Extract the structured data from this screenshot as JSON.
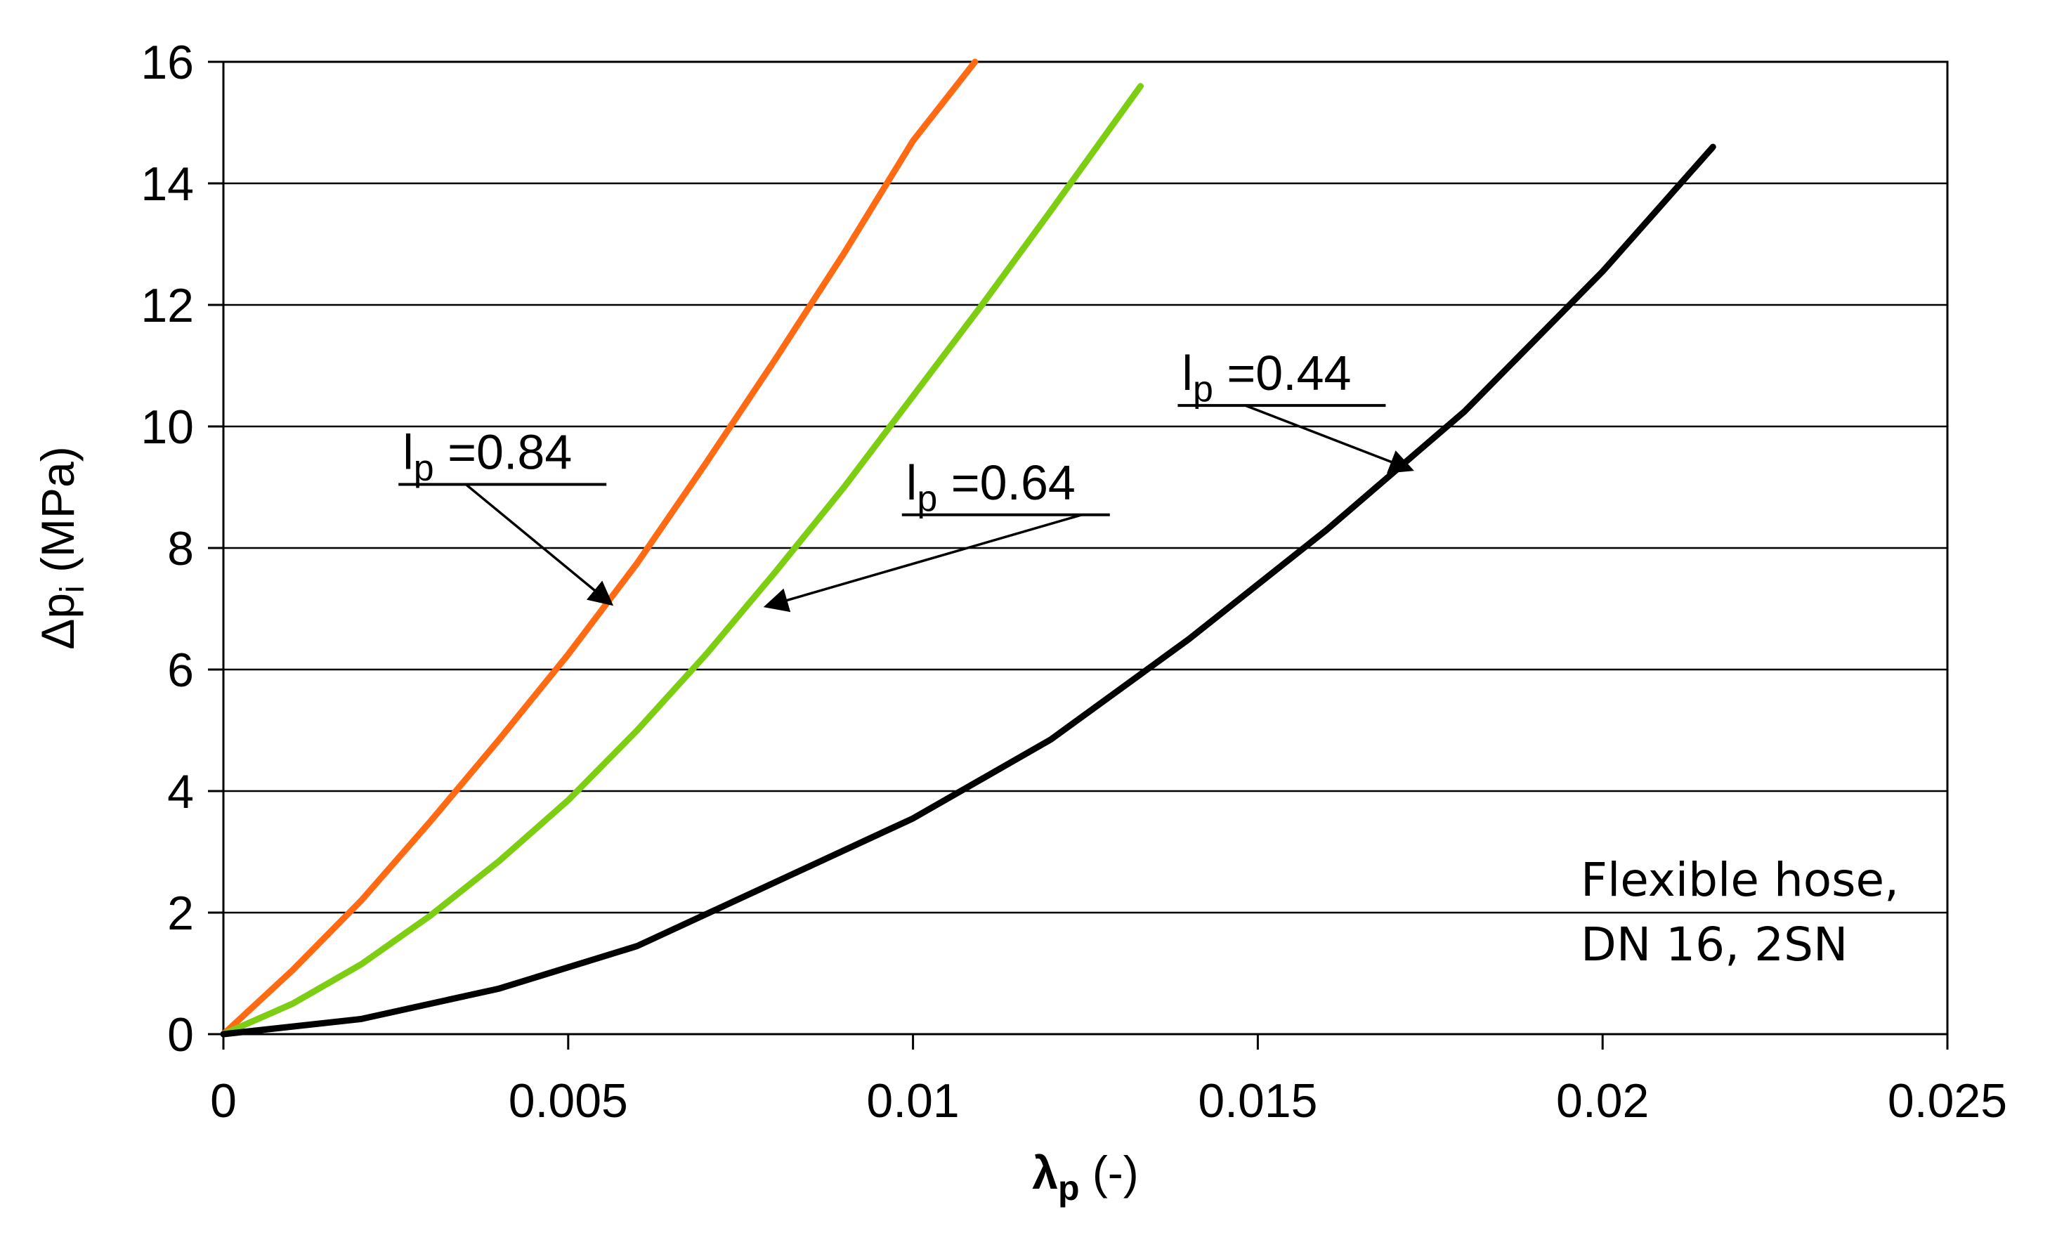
{
  "chart_data": {
    "type": "line",
    "title": "",
    "xlabel": {
      "main": "λ",
      "sub": "p",
      "suffix": " (-)"
    },
    "ylabel": {
      "main": "Δp",
      "sub": "i",
      "suffix": " (MPa)"
    },
    "xlim": [
      0,
      0.025
    ],
    "ylim": [
      0,
      16
    ],
    "x_ticks": [
      0,
      0.005,
      0.01,
      0.015,
      0.02,
      0.025
    ],
    "x_tick_labels": [
      "0",
      "0.005",
      "0.01",
      "0.015",
      "0.02",
      "0.025"
    ],
    "y_ticks": [
      0,
      2,
      4,
      6,
      8,
      10,
      12,
      14,
      16
    ],
    "y_tick_labels": [
      "0",
      "2",
      "4",
      "6",
      "8",
      "10",
      "12",
      "14",
      "16"
    ],
    "grid": "horizontal",
    "series": [
      {
        "name": "lp=0.84",
        "color": "#ff6a13",
        "x": [
          0,
          0.001,
          0.002,
          0.003,
          0.004,
          0.005,
          0.006,
          0.007,
          0.008,
          0.009,
          0.01,
          0.0109
        ],
        "y": [
          0,
          1.05,
          2.2,
          3.5,
          4.85,
          6.25,
          7.75,
          9.4,
          11.1,
          12.85,
          14.7,
          16.0
        ]
      },
      {
        "name": "lp=0.64",
        "color": "#7dce13",
        "x": [
          0,
          0.001,
          0.002,
          0.003,
          0.004,
          0.005,
          0.006,
          0.007,
          0.008,
          0.009,
          0.01,
          0.011,
          0.012,
          0.0133
        ],
        "y": [
          0,
          0.5,
          1.15,
          1.95,
          2.85,
          3.85,
          5.0,
          6.25,
          7.6,
          9.0,
          10.5,
          12.0,
          13.55,
          15.6
        ]
      },
      {
        "name": "lp=0.44",
        "color": "#000000",
        "x": [
          0,
          0.002,
          0.004,
          0.006,
          0.008,
          0.01,
          0.012,
          0.014,
          0.016,
          0.018,
          0.02,
          0.0216
        ],
        "y": [
          0,
          0.25,
          0.75,
          1.45,
          2.5,
          3.55,
          4.85,
          6.5,
          8.3,
          10.25,
          12.55,
          14.6
        ]
      }
    ],
    "annotations": [
      {
        "label_main": "l",
        "label_sub": "p",
        "label_value": " =0.84",
        "text_x": 0.0026,
        "text_y": 9.3,
        "arrow_to_x": 0.0056,
        "arrow_to_y": 7.1
      },
      {
        "label_main": "l",
        "label_sub": "p",
        "label_value": " =0.64",
        "text_x": 0.0099,
        "text_y": 8.8,
        "arrow_to_x": 0.0079,
        "arrow_to_y": 7.05
      },
      {
        "label_main": "l",
        "label_sub": "p",
        "label_value": " =0.44",
        "text_x": 0.0139,
        "text_y": 10.6,
        "arrow_to_x": 0.0172,
        "arrow_to_y": 9.3
      }
    ],
    "note": [
      "Flexible hose,",
      "DN 16, 2SN"
    ]
  },
  "colors": {
    "axis": "#000000",
    "grid": "#000000",
    "background": "#ffffff"
  }
}
